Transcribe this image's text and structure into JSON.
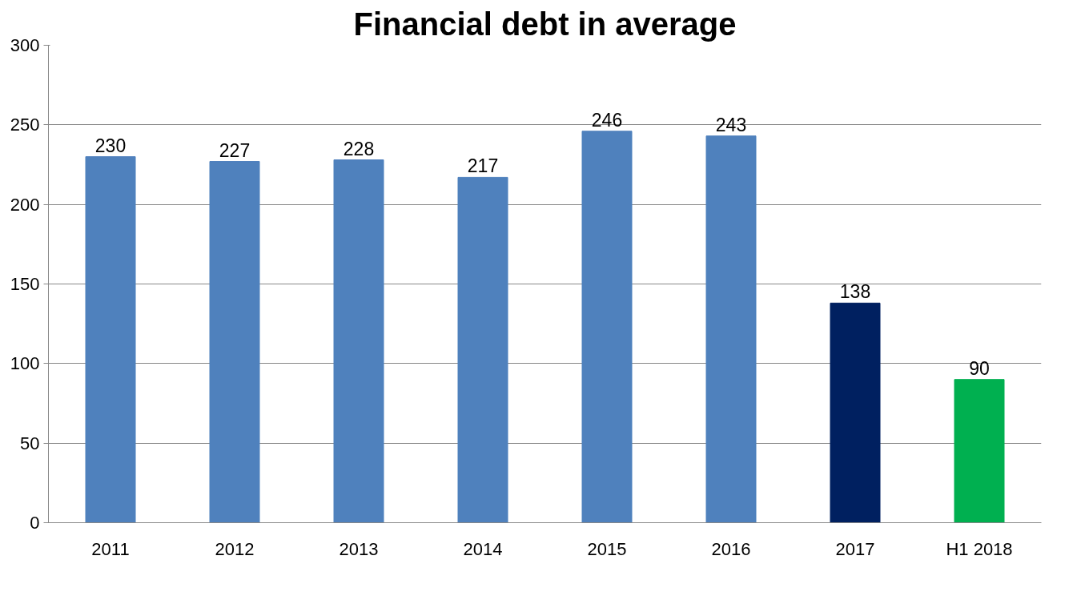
{
  "chart_data": {
    "type": "bar",
    "title": "Financial debt in average",
    "categories": [
      "2011",
      "2012",
      "2013",
      "2014",
      "2015",
      "2016",
      "2017",
      "H1 2018"
    ],
    "values": [
      230,
      227,
      228,
      217,
      246,
      243,
      138,
      90
    ],
    "colors": [
      "#4f81bd",
      "#4f81bd",
      "#4f81bd",
      "#4f81bd",
      "#4f81bd",
      "#4f81bd",
      "#002060",
      "#00b050"
    ],
    "ylim": [
      0,
      300
    ],
    "yticks": [
      0,
      50,
      100,
      150,
      200,
      250,
      300
    ],
    "grid": "y",
    "data_labels": true
  }
}
